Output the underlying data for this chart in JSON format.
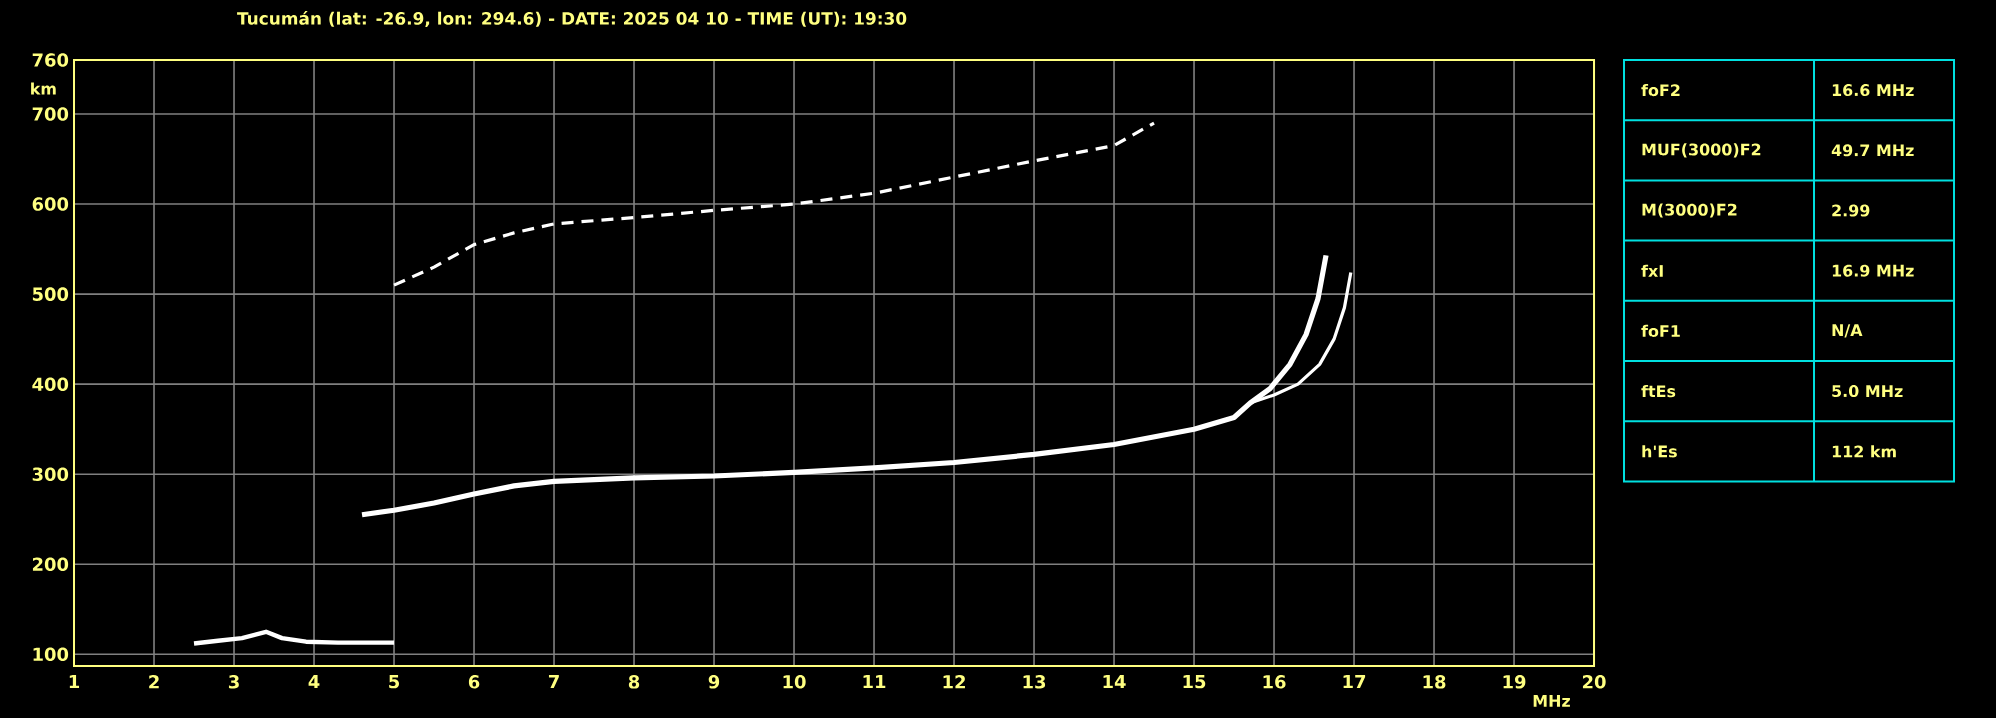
{
  "chart_data": {
    "type": "line",
    "title": "Tucumán (lat: -26.9, lon: 294.6) - DATE: 2025 04 10 - TIME (UT): 19:30",
    "xlabel": "MHz",
    "ylabel": "km",
    "xlim": [
      1,
      20
    ],
    "ylim": [
      87,
      760
    ],
    "xticks": [
      1,
      2,
      3,
      4,
      5,
      6,
      7,
      8,
      9,
      10,
      11,
      12,
      13,
      14,
      15,
      16,
      17,
      18,
      19,
      20
    ],
    "yticks": [
      100,
      200,
      300,
      400,
      500,
      600,
      700,
      760
    ],
    "grid": true,
    "marker": "none",
    "series": [
      {
        "color": "#ffffff",
        "x": [
          4.6,
          5,
          5.5,
          6,
          6.5,
          7,
          8,
          9,
          10,
          11,
          12,
          13,
          14,
          15,
          15.5,
          15.7,
          15.95,
          16.2,
          16.4,
          16.55,
          16.65
        ],
        "values": [
          255,
          260,
          268,
          278,
          287,
          292,
          296,
          298,
          302,
          307,
          313,
          322,
          333,
          350,
          363,
          379,
          395,
          422,
          455,
          495,
          543
        ]
      },
      {
        "color": "#ffffff",
        "x": [
          15.7,
          16,
          16.3,
          16.57,
          16.75,
          16.88,
          16.96
        ],
        "values": [
          379,
          388,
          400,
          422,
          450,
          485,
          524
        ]
      },
      {
        "color": "#ffffff",
        "x": [
          2.5,
          2.8,
          3.1,
          3.4,
          3.6,
          3.9,
          4.3,
          5
        ],
        "values": [
          112,
          115,
          118,
          125,
          118,
          114,
          113,
          113
        ]
      },
      {
        "color": "#ffffff",
        "line_style": "dashed",
        "x": [
          5,
          5.5,
          6,
          6.5,
          7,
          8,
          9,
          10,
          11,
          12,
          13,
          14,
          14.5
        ],
        "values": [
          510,
          530,
          555,
          568,
          578,
          585,
          593,
          600,
          612,
          630,
          648,
          665,
          690
        ]
      }
    ],
    "annotations": [
      "foF2",
      "16.6 MHz",
      "MUF(3000)F2",
      "49.7 MHz",
      "M(3000)F2",
      "2.99",
      "fxI",
      "16.9 MHz",
      "foF1",
      "N/A",
      "ftEs",
      "5.0 MHz",
      "h'Es",
      "112 km"
    ]
  }
}
